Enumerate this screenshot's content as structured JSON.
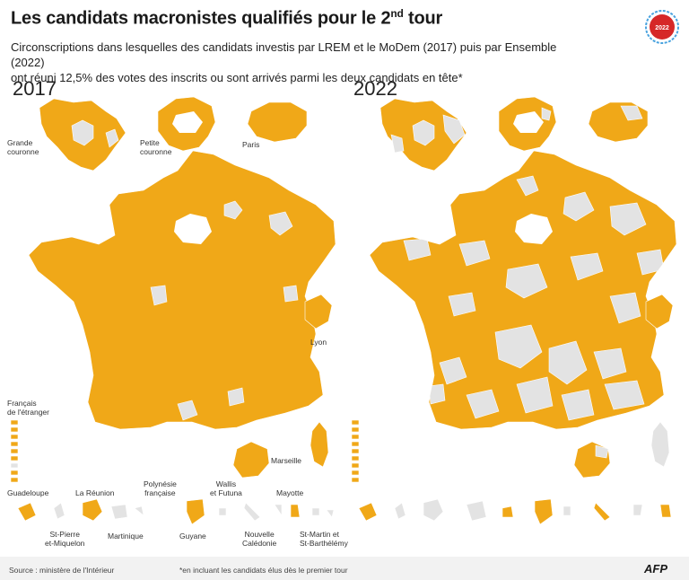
{
  "title": {
    "main": "Les candidats macronistes qualifiés pour le 2",
    "sup": "nd",
    "end": " tour"
  },
  "badge": {
    "text": "2022",
    "color": "#d62828"
  },
  "subtitle_line1": "Circonscriptions dans lesquelles des candidats investis par LREM et le MoDem (2017) puis par Ensemble (2022)",
  "subtitle_line2": "ont réuni 12,5% des votes des inscrits ou sont arrivés parmi les deux candidats en tête*",
  "maps": [
    {
      "year": "2017",
      "qualified_share": 0.96
    },
    {
      "year": "2022",
      "qualified_share": 0.62
    }
  ],
  "labels": {
    "grande": [
      "Grande",
      "couronne"
    ],
    "petite": [
      "Petite",
      "couronne"
    ],
    "paris": "Paris",
    "lyon": "Lyon",
    "marseille": "Marseille",
    "francais": [
      "Français",
      "de l'étranger"
    ],
    "guadeloupe": "Guadeloupe",
    "reunion": "La Réunion",
    "polynesie": [
      "Polynésie",
      "française"
    ],
    "wallis": [
      "Wallis",
      "et Futuna"
    ],
    "mayotte": "Mayotte",
    "stpierre": [
      "St-Pierre",
      "et-Miquelon"
    ],
    "martinique": "Martinique",
    "guyane": "Guyane",
    "caledonie": [
      "Nouvelle",
      "Calédonie"
    ],
    "stmartin": [
      "St-Martin et",
      "St-Barthélémy"
    ]
  },
  "colors": {
    "qualified": "#f0a818",
    "not_qualified": "#e3e3e3"
  },
  "footer": {
    "source": "Source : ministère de l'Intérieur",
    "note": "*en incluant les candidats élus dès le premier tour",
    "logo": "AFP"
  }
}
